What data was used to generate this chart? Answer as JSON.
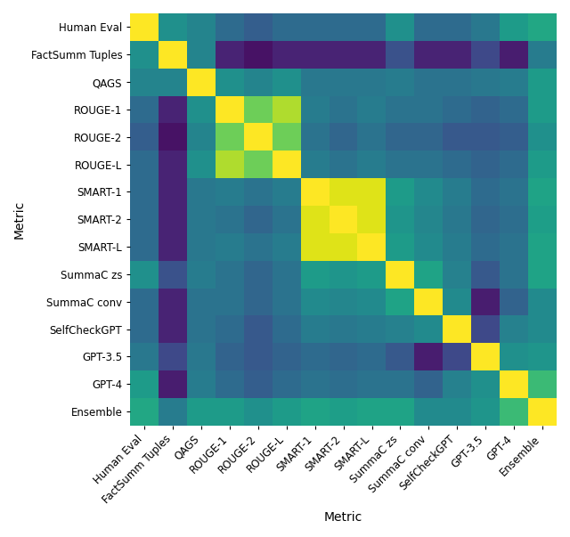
{
  "labels": [
    "Human Eval",
    "FactSumm Tuples",
    "QAGS",
    "ROUGE-1",
    "ROUGE-2",
    "ROUGE-L",
    "SMART-1",
    "SMART-2",
    "SMART-L",
    "SummaC zs",
    "SummaC conv",
    "SelfCheckGPT",
    "GPT-3.5",
    "GPT-4",
    "Ensemble"
  ],
  "matrix": [
    [
      1.0,
      0.5,
      0.45,
      0.35,
      0.3,
      0.35,
      0.35,
      0.35,
      0.35,
      0.5,
      0.35,
      0.35,
      0.4,
      0.55,
      0.6
    ],
    [
      0.5,
      1.0,
      0.45,
      0.1,
      0.05,
      0.1,
      0.1,
      0.1,
      0.1,
      0.25,
      0.1,
      0.1,
      0.22,
      0.08,
      0.42
    ],
    [
      0.45,
      0.45,
      1.0,
      0.5,
      0.45,
      0.5,
      0.4,
      0.4,
      0.4,
      0.42,
      0.38,
      0.38,
      0.4,
      0.42,
      0.55
    ],
    [
      0.35,
      0.1,
      0.5,
      1.0,
      0.78,
      0.88,
      0.42,
      0.38,
      0.42,
      0.38,
      0.38,
      0.35,
      0.32,
      0.35,
      0.55
    ],
    [
      0.3,
      0.05,
      0.45,
      0.78,
      1.0,
      0.78,
      0.38,
      0.33,
      0.38,
      0.33,
      0.33,
      0.28,
      0.28,
      0.3,
      0.5
    ],
    [
      0.35,
      0.1,
      0.5,
      0.88,
      0.78,
      1.0,
      0.42,
      0.38,
      0.42,
      0.38,
      0.38,
      0.35,
      0.32,
      0.35,
      0.55
    ],
    [
      0.35,
      0.1,
      0.4,
      0.42,
      0.38,
      0.42,
      1.0,
      0.95,
      0.95,
      0.55,
      0.48,
      0.42,
      0.35,
      0.38,
      0.58
    ],
    [
      0.35,
      0.1,
      0.4,
      0.38,
      0.33,
      0.38,
      0.95,
      1.0,
      0.95,
      0.52,
      0.46,
      0.4,
      0.33,
      0.36,
      0.56
    ],
    [
      0.35,
      0.1,
      0.4,
      0.42,
      0.38,
      0.42,
      0.95,
      0.95,
      1.0,
      0.55,
      0.48,
      0.42,
      0.35,
      0.38,
      0.58
    ],
    [
      0.5,
      0.25,
      0.42,
      0.38,
      0.33,
      0.38,
      0.55,
      0.52,
      0.55,
      1.0,
      0.58,
      0.44,
      0.28,
      0.38,
      0.58
    ],
    [
      0.35,
      0.1,
      0.38,
      0.38,
      0.33,
      0.38,
      0.48,
      0.46,
      0.48,
      0.58,
      1.0,
      0.48,
      0.08,
      0.32,
      0.48
    ],
    [
      0.35,
      0.1,
      0.38,
      0.35,
      0.28,
      0.35,
      0.42,
      0.4,
      0.42,
      0.44,
      0.48,
      1.0,
      0.22,
      0.44,
      0.48
    ],
    [
      0.4,
      0.22,
      0.4,
      0.32,
      0.28,
      0.32,
      0.35,
      0.33,
      0.35,
      0.28,
      0.08,
      0.22,
      1.0,
      0.5,
      0.52
    ],
    [
      0.55,
      0.08,
      0.42,
      0.35,
      0.3,
      0.35,
      0.38,
      0.36,
      0.38,
      0.38,
      0.32,
      0.44,
      0.5,
      1.0,
      0.68
    ],
    [
      0.6,
      0.42,
      0.55,
      0.55,
      0.5,
      0.55,
      0.58,
      0.56,
      0.58,
      0.58,
      0.48,
      0.48,
      0.52,
      0.68,
      1.0
    ]
  ],
  "cmap": "viridis",
  "title": "",
  "xlabel": "Metric",
  "ylabel": "Metric",
  "vmin": 0.0,
  "vmax": 1.0,
  "figsize": [
    6.4,
    6.03
  ],
  "dpi": 100,
  "label_fontsize": 8.5,
  "axis_label_fontsize": 10
}
